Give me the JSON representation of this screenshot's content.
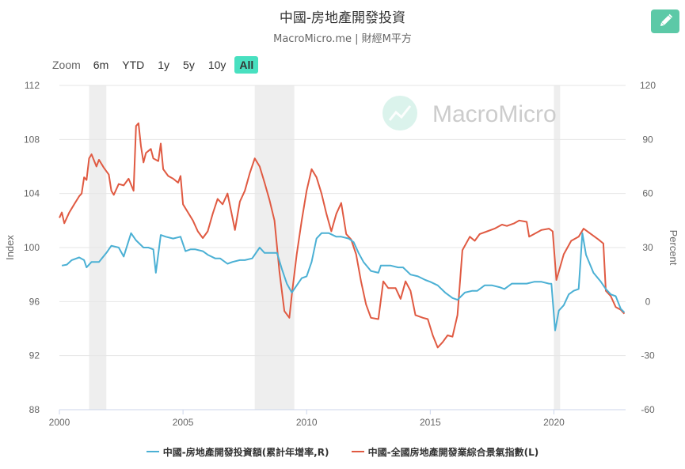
{
  "header": {
    "title": "中國-房地產開發投資",
    "subtitle": "MacroMicro.me | 財經M平方"
  },
  "watermark": "MacroMicro",
  "zoom": {
    "label": "Zoom",
    "buttons": [
      "6m",
      "YTD",
      "1y",
      "5y",
      "10y",
      "All"
    ],
    "active": "All"
  },
  "colors": {
    "series_blue": "#4bb0d4",
    "series_red": "#e05a42",
    "recession": "#eeeeee",
    "accent": "#5cc9a7",
    "zoom_active": "#48e0c0"
  },
  "chart_data": {
    "type": "line",
    "title": "中國-房地產開發投資",
    "xlabel": "",
    "x_ticks": [
      "2000",
      "2005",
      "2010",
      "2015",
      "2020"
    ],
    "xlim": [
      2000,
      2022.9
    ],
    "left_axis": {
      "label": "Index",
      "ylim": [
        88,
        112
      ],
      "ticks": [
        "112",
        "108",
        "104",
        "100",
        "96",
        "92",
        "88"
      ]
    },
    "right_axis": {
      "label": "Percent",
      "ylim": [
        -60,
        120
      ],
      "ticks": [
        "120",
        "90",
        "60",
        "30",
        "0",
        "-30",
        "-60"
      ]
    },
    "recession_bands": [
      [
        2001.2,
        2001.9
      ],
      [
        2007.9,
        2009.5
      ],
      [
        2020.0,
        2020.25
      ]
    ],
    "grid": true,
    "legend_position": "bottom",
    "series": [
      {
        "name": "中國-房地產開發投資額(累計年增率,R)",
        "axis": "right",
        "color": "#4bb0d4",
        "points": [
          [
            2000.1,
            20
          ],
          [
            2000.3,
            20.5
          ],
          [
            2000.5,
            23
          ],
          [
            2000.8,
            24.5
          ],
          [
            2001.0,
            23
          ],
          [
            2001.1,
            19
          ],
          [
            2001.3,
            22
          ],
          [
            2001.6,
            22
          ],
          [
            2001.9,
            27
          ],
          [
            2002.1,
            31
          ],
          [
            2002.4,
            30
          ],
          [
            2002.6,
            25
          ],
          [
            2002.9,
            38
          ],
          [
            2003.1,
            34
          ],
          [
            2003.4,
            30
          ],
          [
            2003.6,
            30
          ],
          [
            2003.8,
            29
          ],
          [
            2003.9,
            16
          ],
          [
            2004.1,
            37
          ],
          [
            2004.3,
            36
          ],
          [
            2004.6,
            35
          ],
          [
            2004.9,
            36
          ],
          [
            2005.1,
            28
          ],
          [
            2005.3,
            29
          ],
          [
            2005.5,
            29
          ],
          [
            2005.8,
            28
          ],
          [
            2006.0,
            26
          ],
          [
            2006.3,
            24
          ],
          [
            2006.5,
            24
          ],
          [
            2006.8,
            21
          ],
          [
            2007.0,
            22
          ],
          [
            2007.3,
            23
          ],
          [
            2007.5,
            23
          ],
          [
            2007.8,
            24
          ],
          [
            2008.1,
            30
          ],
          [
            2008.3,
            27
          ],
          [
            2008.5,
            27
          ],
          [
            2008.8,
            27
          ],
          [
            2009.0,
            18
          ],
          [
            2009.2,
            10
          ],
          [
            2009.4,
            5
          ],
          [
            2009.5,
            7
          ],
          [
            2009.8,
            13
          ],
          [
            2010.0,
            14
          ],
          [
            2010.2,
            22
          ],
          [
            2010.4,
            35
          ],
          [
            2010.6,
            38
          ],
          [
            2010.9,
            38
          ],
          [
            2011.2,
            36
          ],
          [
            2011.4,
            36
          ],
          [
            2011.7,
            35
          ],
          [
            2011.9,
            33
          ],
          [
            2012.1,
            27
          ],
          [
            2012.3,
            22
          ],
          [
            2012.6,
            17
          ],
          [
            2012.9,
            16
          ],
          [
            2013.0,
            20
          ],
          [
            2013.2,
            20
          ],
          [
            2013.4,
            20
          ],
          [
            2013.7,
            19
          ],
          [
            2013.9,
            19
          ],
          [
            2014.2,
            15
          ],
          [
            2014.5,
            14
          ],
          [
            2014.8,
            12
          ],
          [
            2015.0,
            11
          ],
          [
            2015.3,
            9
          ],
          [
            2015.6,
            5
          ],
          [
            2015.9,
            2
          ],
          [
            2016.1,
            1
          ],
          [
            2016.4,
            5
          ],
          [
            2016.7,
            6
          ],
          [
            2016.9,
            6
          ],
          [
            2017.2,
            9
          ],
          [
            2017.5,
            9
          ],
          [
            2017.8,
            8
          ],
          [
            2018.0,
            7
          ],
          [
            2018.3,
            10
          ],
          [
            2018.6,
            10
          ],
          [
            2018.9,
            10
          ],
          [
            2019.2,
            11
          ],
          [
            2019.5,
            11
          ],
          [
            2019.8,
            10
          ],
          [
            2019.9,
            9.9
          ],
          [
            2020.05,
            -16
          ],
          [
            2020.2,
            -5
          ],
          [
            2020.4,
            -2
          ],
          [
            2020.6,
            4
          ],
          [
            2020.8,
            6
          ],
          [
            2021.0,
            7
          ],
          [
            2021.15,
            38
          ],
          [
            2021.3,
            26
          ],
          [
            2021.6,
            16
          ],
          [
            2021.9,
            11
          ],
          [
            2022.1,
            7
          ],
          [
            2022.3,
            4
          ],
          [
            2022.5,
            3
          ],
          [
            2022.7,
            -4
          ],
          [
            2022.85,
            -6
          ]
        ]
      },
      {
        "name": "中國-全國房地產開發業綜合景氣指數(L)",
        "axis": "left",
        "color": "#e05a42",
        "points": [
          [
            2000.0,
            102.2
          ],
          [
            2000.1,
            102.6
          ],
          [
            2000.2,
            101.8
          ],
          [
            2000.4,
            102.6
          ],
          [
            2000.6,
            103.2
          ],
          [
            2000.8,
            103.8
          ],
          [
            2000.9,
            104.0
          ],
          [
            2001.0,
            105.2
          ],
          [
            2001.1,
            105.0
          ],
          [
            2001.2,
            106.6
          ],
          [
            2001.3,
            106.9
          ],
          [
            2001.5,
            106.0
          ],
          [
            2001.6,
            106.5
          ],
          [
            2001.8,
            105.9
          ],
          [
            2002.0,
            105.4
          ],
          [
            2002.1,
            104.2
          ],
          [
            2002.2,
            103.9
          ],
          [
            2002.4,
            104.7
          ],
          [
            2002.6,
            104.6
          ],
          [
            2002.8,
            105.1
          ],
          [
            2003.0,
            104.2
          ],
          [
            2003.1,
            109.0
          ],
          [
            2003.2,
            109.2
          ],
          [
            2003.3,
            107.5
          ],
          [
            2003.4,
            106.3
          ],
          [
            2003.5,
            107.0
          ],
          [
            2003.7,
            107.3
          ],
          [
            2003.8,
            106.6
          ],
          [
            2004.0,
            106.4
          ],
          [
            2004.1,
            107.7
          ],
          [
            2004.2,
            105.8
          ],
          [
            2004.4,
            105.3
          ],
          [
            2004.6,
            105.1
          ],
          [
            2004.8,
            104.8
          ],
          [
            2004.9,
            105.3
          ],
          [
            2005.0,
            103.2
          ],
          [
            2005.2,
            102.6
          ],
          [
            2005.4,
            102.0
          ],
          [
            2005.6,
            101.2
          ],
          [
            2005.8,
            100.7
          ],
          [
            2006.0,
            101.2
          ],
          [
            2006.2,
            102.5
          ],
          [
            2006.4,
            103.6
          ],
          [
            2006.6,
            103.2
          ],
          [
            2006.8,
            104.0
          ],
          [
            2007.0,
            102.2
          ],
          [
            2007.1,
            101.3
          ],
          [
            2007.3,
            103.4
          ],
          [
            2007.5,
            104.2
          ],
          [
            2007.7,
            105.5
          ],
          [
            2007.9,
            106.6
          ],
          [
            2008.1,
            106.0
          ],
          [
            2008.3,
            104.8
          ],
          [
            2008.5,
            103.5
          ],
          [
            2008.7,
            102.0
          ],
          [
            2008.9,
            98.2
          ],
          [
            2009.1,
            95.3
          ],
          [
            2009.3,
            94.8
          ],
          [
            2009.4,
            96.5
          ],
          [
            2009.6,
            99.5
          ],
          [
            2009.8,
            102.0
          ],
          [
            2010.0,
            104.2
          ],
          [
            2010.2,
            105.8
          ],
          [
            2010.4,
            105.2
          ],
          [
            2010.6,
            104.0
          ],
          [
            2010.8,
            102.5
          ],
          [
            2011.0,
            101.2
          ],
          [
            2011.2,
            102.5
          ],
          [
            2011.4,
            103.3
          ],
          [
            2011.6,
            101.0
          ],
          [
            2011.8,
            100.6
          ],
          [
            2012.0,
            99.5
          ],
          [
            2012.2,
            97.5
          ],
          [
            2012.4,
            95.8
          ],
          [
            2012.6,
            94.8
          ],
          [
            2012.9,
            94.7
          ],
          [
            2013.1,
            97.5
          ],
          [
            2013.3,
            97.0
          ],
          [
            2013.6,
            97.0
          ],
          [
            2013.8,
            96.2
          ],
          [
            2014.0,
            97.5
          ],
          [
            2014.2,
            96.8
          ],
          [
            2014.4,
            95.0
          ],
          [
            2014.7,
            94.8
          ],
          [
            2014.9,
            94.7
          ],
          [
            2015.1,
            93.5
          ],
          [
            2015.3,
            92.6
          ],
          [
            2015.5,
            93.0
          ],
          [
            2015.7,
            93.5
          ],
          [
            2015.9,
            93.4
          ],
          [
            2016.1,
            95.0
          ],
          [
            2016.3,
            99.8
          ],
          [
            2016.6,
            100.8
          ],
          [
            2016.8,
            100.5
          ],
          [
            2017.0,
            101.0
          ],
          [
            2017.3,
            101.2
          ],
          [
            2017.6,
            101.4
          ],
          [
            2017.9,
            101.7
          ],
          [
            2018.1,
            101.6
          ],
          [
            2018.4,
            101.8
          ],
          [
            2018.6,
            102.0
          ],
          [
            2018.9,
            101.9
          ],
          [
            2019.0,
            100.8
          ],
          [
            2019.2,
            101.0
          ],
          [
            2019.5,
            101.3
          ],
          [
            2019.8,
            101.4
          ],
          [
            2019.95,
            101.2
          ],
          [
            2020.1,
            97.6
          ],
          [
            2020.4,
            99.5
          ],
          [
            2020.7,
            100.5
          ],
          [
            2021.0,
            100.8
          ],
          [
            2021.2,
            101.4
          ],
          [
            2021.5,
            101.0
          ],
          [
            2021.8,
            100.6
          ],
          [
            2022.0,
            100.3
          ],
          [
            2022.1,
            96.8
          ],
          [
            2022.3,
            96.4
          ],
          [
            2022.5,
            95.6
          ],
          [
            2022.7,
            95.4
          ],
          [
            2022.85,
            95.1
          ]
        ]
      }
    ]
  }
}
